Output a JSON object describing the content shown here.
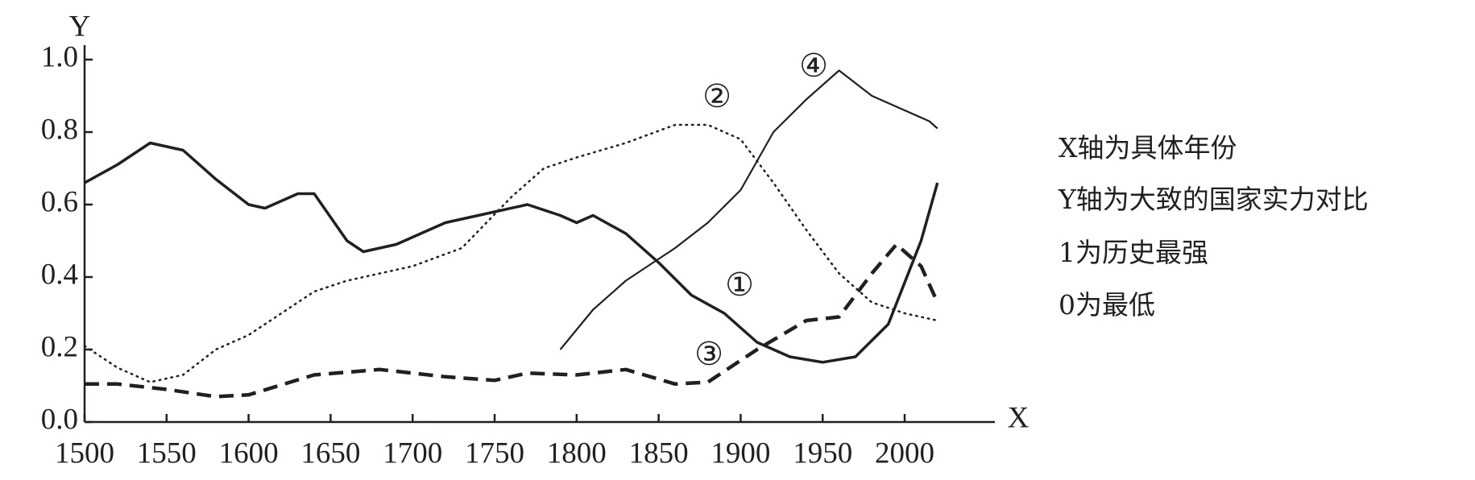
{
  "chart_data": {
    "type": "line",
    "xlabel": "X",
    "ylabel": "Y",
    "xlim": [
      1500,
      2055
    ],
    "ylim": [
      0,
      1.04
    ],
    "xticks": [
      1500,
      1550,
      1600,
      1650,
      1700,
      1750,
      1800,
      1850,
      1900,
      1950,
      2000
    ],
    "yticks": [
      {
        "value": 0,
        "label": "0.0"
      },
      0.2,
      0.4,
      0.6,
      0.8,
      {
        "value": 1,
        "label": "1.0"
      }
    ],
    "series": [
      {
        "name": "①",
        "color": "#231f20",
        "style": "thick",
        "x": [
          1500,
          1520,
          1540,
          1560,
          1580,
          1600,
          1610,
          1630,
          1640,
          1660,
          1670,
          1690,
          1720,
          1750,
          1770,
          1790,
          1800,
          1810,
          1830,
          1850,
          1870,
          1890,
          1910,
          1930,
          1950,
          1970,
          1990,
          2010,
          2020
        ],
        "values": [
          0.66,
          0.71,
          0.77,
          0.75,
          0.67,
          0.6,
          0.59,
          0.63,
          0.63,
          0.5,
          0.47,
          0.49,
          0.55,
          0.58,
          0.6,
          0.57,
          0.55,
          0.57,
          0.52,
          0.44,
          0.35,
          0.3,
          0.22,
          0.18,
          0.165,
          0.18,
          0.27,
          0.5,
          0.66
        ]
      },
      {
        "name": "②",
        "color": "#231f20",
        "style": "dotted",
        "x": [
          1500,
          1520,
          1540,
          1560,
          1580,
          1600,
          1620,
          1640,
          1660,
          1700,
          1730,
          1760,
          1780,
          1800,
          1830,
          1860,
          1880,
          1900,
          1920,
          1940,
          1960,
          1980,
          2000,
          2020
        ],
        "values": [
          0.21,
          0.15,
          0.11,
          0.13,
          0.2,
          0.24,
          0.3,
          0.36,
          0.39,
          0.43,
          0.48,
          0.62,
          0.7,
          0.73,
          0.77,
          0.82,
          0.82,
          0.78,
          0.66,
          0.53,
          0.41,
          0.33,
          0.3,
          0.28
        ]
      },
      {
        "name": "③",
        "color": "#231f20",
        "style": "dashed",
        "x": [
          1500,
          1520,
          1550,
          1580,
          1600,
          1640,
          1680,
          1720,
          1750,
          1770,
          1800,
          1830,
          1860,
          1880,
          1910,
          1940,
          1960,
          1980,
          1995,
          2010,
          2020
        ],
        "values": [
          0.105,
          0.105,
          0.09,
          0.07,
          0.075,
          0.13,
          0.145,
          0.125,
          0.115,
          0.135,
          0.13,
          0.145,
          0.105,
          0.11,
          0.2,
          0.28,
          0.29,
          0.41,
          0.49,
          0.43,
          0.33
        ]
      },
      {
        "name": "④",
        "color": "#231f20",
        "style": "thin",
        "x": [
          1790,
          1810,
          1830,
          1860,
          1880,
          1900,
          1920,
          1940,
          1960,
          1980,
          2000,
          2015,
          2020
        ],
        "values": [
          0.2,
          0.31,
          0.39,
          0.48,
          0.55,
          0.64,
          0.8,
          0.89,
          0.97,
          0.9,
          0.86,
          0.83,
          0.81
        ]
      }
    ],
    "annotations": [
      "X轴为具体年份",
      "Y轴为大致的国家实力对比",
      "1为历史最强",
      "0为最低"
    ]
  }
}
